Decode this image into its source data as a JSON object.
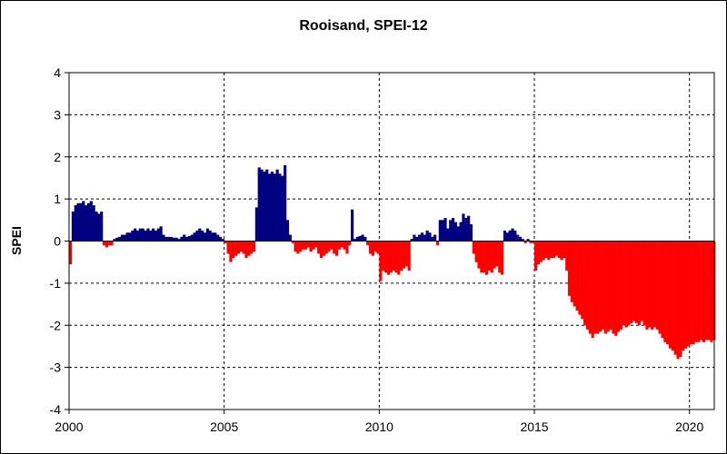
{
  "chart_data": {
    "type": "bar",
    "title": "Rooisand, SPEI-12",
    "xlabel": "",
    "ylabel": "SPEI",
    "xlim": [
      2000,
      2020.8
    ],
    "ylim": [
      -4,
      4
    ],
    "x_ticks": [
      "2000",
      "2005",
      "2010",
      "2015",
      "2020"
    ],
    "y_ticks": [
      "4",
      "3",
      "2",
      "1",
      "0",
      "-1",
      "-2",
      "-3",
      "-4"
    ],
    "grid": true,
    "colors": {
      "positive": "#000080",
      "negative": "#ff0000"
    },
    "monthly_start": "2000-01",
    "values": [
      -0.55,
      0.7,
      0.85,
      0.9,
      0.9,
      0.95,
      0.85,
      0.9,
      0.95,
      0.85,
      0.7,
      0.65,
      0.7,
      -0.1,
      -0.15,
      -0.1,
      -0.1,
      0.05,
      0.08,
      0.1,
      0.15,
      0.15,
      0.2,
      0.2,
      0.25,
      0.3,
      0.25,
      0.3,
      0.3,
      0.25,
      0.3,
      0.25,
      0.3,
      0.25,
      0.3,
      0.35,
      0.15,
      0.1,
      0.1,
      0.1,
      0.08,
      0.08,
      0.05,
      0.1,
      0.15,
      0.1,
      0.12,
      0.15,
      0.2,
      0.25,
      0.3,
      0.25,
      0.2,
      0.3,
      0.25,
      0.2,
      0.2,
      0.15,
      0.1,
      0.05,
      -0.05,
      -0.3,
      -0.5,
      -0.4,
      -0.35,
      -0.3,
      -0.25,
      -0.3,
      -0.4,
      -0.35,
      -0.3,
      -0.25,
      0.8,
      1.75,
      1.7,
      1.65,
      1.7,
      1.6,
      1.65,
      1.6,
      1.7,
      1.6,
      1.55,
      1.8,
      0.5,
      0.15,
      -0.05,
      -0.25,
      -0.3,
      -0.25,
      -0.2,
      -0.2,
      -0.15,
      -0.25,
      -0.2,
      -0.15,
      -0.3,
      -0.4,
      -0.35,
      -0.3,
      -0.25,
      -0.2,
      -0.3,
      -0.35,
      -0.2,
      -0.15,
      -0.2,
      -0.3,
      -0.1,
      0.75,
      0.05,
      0.1,
      0.12,
      0.15,
      0.1,
      -0.1,
      -0.3,
      -0.35,
      -0.25,
      -0.3,
      -0.95,
      -0.7,
      -0.75,
      -0.8,
      -0.75,
      -0.7,
      -0.75,
      -0.8,
      -0.7,
      -0.65,
      -0.6,
      -0.7,
      0.05,
      0.15,
      0.1,
      0.15,
      0.2,
      0.15,
      0.25,
      0.2,
      0.1,
      0.15,
      -0.1,
      0.5,
      0.5,
      0.55,
      0.3,
      0.5,
      0.55,
      0.45,
      0.35,
      0.45,
      0.65,
      0.55,
      0.6,
      0.4,
      -0.3,
      -0.5,
      -0.65,
      -0.75,
      -0.75,
      -0.8,
      -0.7,
      -0.75,
      -0.65,
      -0.6,
      -0.75,
      -0.8,
      0.25,
      0.2,
      0.25,
      0.3,
      0.25,
      0.15,
      0.1,
      0.05,
      -0.05,
      0.05,
      -0.05,
      -0.05,
      -0.7,
      -0.55,
      -0.5,
      -0.45,
      -0.4,
      -0.45,
      -0.4,
      -0.4,
      -0.35,
      -0.4,
      -0.45,
      -0.4,
      -0.7,
      -1.3,
      -1.45,
      -1.55,
      -1.65,
      -1.75,
      -1.85,
      -2.0,
      -2.1,
      -2.2,
      -2.3,
      -2.2,
      -2.2,
      -2.15,
      -2.1,
      -2.2,
      -2.15,
      -2.1,
      -2.2,
      -2.25,
      -2.15,
      -2.1,
      -2.0,
      -2.05,
      -2.0,
      -1.95,
      -1.9,
      -1.95,
      -2.0,
      -1.9,
      -2.0,
      -2.1,
      -2.05,
      -2.1,
      -2.05,
      -2.1,
      -2.2,
      -2.3,
      -2.4,
      -2.45,
      -2.55,
      -2.6,
      -2.7,
      -2.8,
      -2.75,
      -2.6,
      -2.55,
      -2.5,
      -2.45,
      -2.45,
      -2.4,
      -2.4,
      -2.35,
      -2.4,
      -2.35,
      -2.35,
      -2.4,
      -2.35
    ]
  }
}
